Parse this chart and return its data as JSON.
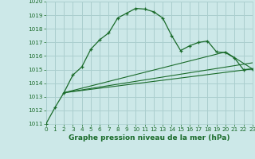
{
  "title": "Graphe pression niveau de la mer (hPa)",
  "bg_color": "#cce8e8",
  "grid_color": "#aacece",
  "line_color": "#1a6b2a",
  "xlim": [
    0,
    23
  ],
  "ylim": [
    1011,
    1020
  ],
  "yticks": [
    1011,
    1012,
    1013,
    1014,
    1015,
    1016,
    1017,
    1018,
    1019,
    1020
  ],
  "xticks": [
    0,
    1,
    2,
    3,
    4,
    5,
    6,
    7,
    8,
    9,
    10,
    11,
    12,
    13,
    14,
    15,
    16,
    17,
    18,
    19,
    20,
    21,
    22,
    23
  ],
  "main_x": [
    0,
    1,
    2,
    3,
    4,
    5,
    6,
    7,
    8,
    9,
    10,
    11,
    12,
    13,
    14,
    15,
    16,
    17,
    18,
    19,
    20,
    21,
    22,
    23
  ],
  "main_y": [
    1011.0,
    1012.2,
    1013.3,
    1014.6,
    1015.2,
    1016.5,
    1017.2,
    1017.7,
    1018.8,
    1019.15,
    1019.5,
    1019.45,
    1019.25,
    1018.8,
    1017.5,
    1016.4,
    1016.75,
    1017.0,
    1017.1,
    1016.3,
    1016.25,
    1015.85,
    1015.0,
    1015.05
  ],
  "trend1_x": [
    2,
    23
  ],
  "trend1_y": [
    1013.3,
    1015.05
  ],
  "trend2_x": [
    2,
    23
  ],
  "trend2_y": [
    1013.3,
    1015.5
  ],
  "trend3_x": [
    2,
    20,
    23
  ],
  "trend3_y": [
    1013.3,
    1016.3,
    1015.05
  ],
  "title_fontsize": 6.5,
  "tick_fontsize": 5.2
}
